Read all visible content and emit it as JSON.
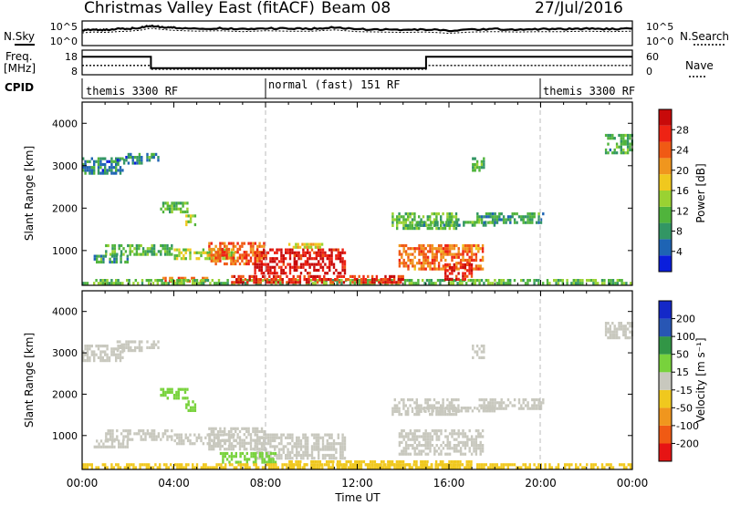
{
  "header": {
    "station": "Christmas Valley East (fitACF)",
    "beam": "Beam 08",
    "date": "27/Jul/2016"
  },
  "left_labels": {
    "nsky": "N.Sky",
    "freq_line1": "Freq.",
    "freq_line2": "[MHz]",
    "cpid": "CPID"
  },
  "right_labels": {
    "nsearch": "N.Search",
    "nave": "Nave"
  },
  "cpid_segments": [
    {
      "label": "themis 3300 RF",
      "start_h": 0.0
    },
    {
      "label": "normal (fast) 151 RF",
      "start_h": 8.0
    },
    {
      "label": "themis 3300 RF",
      "start_h": 20.0
    }
  ],
  "x_axis": {
    "title": "Time UT",
    "ticks": [
      "00:00",
      "04:00",
      "08:00",
      "12:00",
      "16:00",
      "20:00",
      "00:00"
    ],
    "tick_hours": [
      0,
      4,
      8,
      12,
      16,
      20,
      24
    ]
  },
  "y_axis": {
    "title": "Slant Range [km]",
    "ticks": [
      "1000",
      "2000",
      "3000",
      "4000"
    ],
    "tick_values": [
      1000,
      2000,
      3000,
      4000
    ],
    "range": [
      180,
      4500
    ]
  },
  "colors": {
    "power": [
      "#0a1edc",
      "#1e64b4",
      "#329664",
      "#50b43c",
      "#9ad232",
      "#f0c81e",
      "#f0961e",
      "#f05a14",
      "#ee2314",
      "#c80a0a"
    ],
    "velocity": [
      "#e61414",
      "#f05a14",
      "#f0961e",
      "#f0c81e",
      "#c8c8be",
      "#78d23c",
      "#329646",
      "#2856b4",
      "#1428c8"
    ],
    "ground_scatter": "#c8c8be"
  },
  "chart_data": [
    {
      "type": "line",
      "name": "noise-sky",
      "ylabel": "",
      "yticks_left": [
        "10^5",
        "10^0"
      ],
      "yticks_right": [
        "10^5",
        "10^0"
      ],
      "x": [
        0,
        0.5,
        1,
        1.5,
        2,
        2.5,
        3,
        3.5,
        4,
        5,
        6,
        7,
        8,
        9,
        10,
        11,
        12,
        13,
        14,
        15,
        16,
        17,
        18,
        19,
        20,
        21,
        22,
        23,
        24
      ],
      "values": [
        3.2,
        3.4,
        3.3,
        3.5,
        3.6,
        3.8,
        4.3,
        4.0,
        3.8,
        3.6,
        3.7,
        3.5,
        3.7,
        3.6,
        3.6,
        3.9,
        3.5,
        3.4,
        3.3,
        3.4,
        3.1,
        3.4,
        3.5,
        3.4,
        3.5,
        3.5,
        3.6,
        3.5,
        3.6
      ],
      "ylim": [
        0,
        5
      ]
    },
    {
      "type": "line",
      "name": "frequency-nave",
      "ylabel": "Freq. [MHz]",
      "yticks_left": [
        "18",
        "8"
      ],
      "yticks_right": [
        "60",
        "0"
      ],
      "series": [
        {
          "name": "Freq.",
          "x": [
            0,
            3,
            3,
            15,
            15,
            24
          ],
          "values": [
            15.5,
            15.5,
            10.5,
            10.5,
            15.5,
            15.5
          ]
        },
        {
          "name": "Nave",
          "x": [
            0,
            3,
            3,
            15,
            15,
            24
          ],
          "values": [
            22,
            22,
            12,
            12,
            22,
            22
          ]
        }
      ],
      "ylim_left": [
        8,
        18
      ],
      "ylim_right": [
        0,
        60
      ]
    },
    {
      "type": "heatmap",
      "title": "Power",
      "ylabel": "Slant Range [km]",
      "colorbar_label": "Power [dB]",
      "colorbar_ticks": [
        "4",
        "8",
        "12",
        "16",
        "20",
        "24",
        "28"
      ],
      "colorbar_tick_values": [
        4,
        8,
        12,
        16,
        20,
        24,
        28
      ],
      "colorbar_range": [
        0,
        32
      ],
      "xlim_h": [
        0,
        24
      ],
      "ylim_km": [
        180,
        4500
      ],
      "blobs": [
        {
          "h0": 0.0,
          "h1": 1.8,
          "r0": 2800,
          "r1": 3200,
          "v": 7
        },
        {
          "h0": 1.5,
          "h1": 2.6,
          "r0": 3000,
          "r1": 3300,
          "v": 6
        },
        {
          "h0": 2.8,
          "h1": 3.4,
          "r0": 3100,
          "r1": 3300,
          "v": 9
        },
        {
          "h0": 3.4,
          "h1": 4.6,
          "r0": 1900,
          "r1": 2150,
          "v": 12
        },
        {
          "h0": 4.5,
          "h1": 5.0,
          "r0": 1550,
          "r1": 1850,
          "v": 14
        },
        {
          "h0": 1.0,
          "h1": 4.0,
          "r0": 850,
          "r1": 1150,
          "v": 11
        },
        {
          "h0": 0.5,
          "h1": 2.0,
          "r0": 700,
          "r1": 900,
          "v": 9
        },
        {
          "h0": 4.0,
          "h1": 6.8,
          "r0": 780,
          "r1": 1050,
          "v": 15
        },
        {
          "h0": 5.5,
          "h1": 8.0,
          "r0": 650,
          "r1": 1200,
          "v": 24
        },
        {
          "h0": 7.5,
          "h1": 11.5,
          "r0": 400,
          "r1": 1050,
          "v": 29
        },
        {
          "h0": 8.8,
          "h1": 10.5,
          "r0": 1050,
          "r1": 1180,
          "v": 18
        },
        {
          "h0": 3.5,
          "h1": 5.5,
          "r0": 250,
          "r1": 380,
          "v": 24
        },
        {
          "h0": 0.0,
          "h1": 24.0,
          "r0": 180,
          "r1": 330,
          "v": 12
        },
        {
          "h0": 6.5,
          "h1": 14.0,
          "r0": 180,
          "r1": 420,
          "v": 27
        },
        {
          "h0": 13.5,
          "h1": 16.5,
          "r0": 1500,
          "r1": 1900,
          "v": 12
        },
        {
          "h0": 14.5,
          "h1": 18.0,
          "r0": 1550,
          "r1": 1700,
          "v": 10
        },
        {
          "h0": 17.2,
          "h1": 20.2,
          "r0": 1650,
          "r1": 1900,
          "v": 9
        },
        {
          "h0": 13.8,
          "h1": 17.5,
          "r0": 500,
          "r1": 1150,
          "v": 23
        },
        {
          "h0": 15.8,
          "h1": 17.0,
          "r0": 300,
          "r1": 700,
          "v": 28
        },
        {
          "h0": 17.0,
          "h1": 17.6,
          "r0": 2850,
          "r1": 3200,
          "v": 10
        },
        {
          "h0": 22.8,
          "h1": 24.0,
          "r0": 3300,
          "r1": 3750,
          "v": 10
        }
      ]
    },
    {
      "type": "heatmap",
      "title": "Velocity",
      "ylabel": "Slant Range [km]",
      "colorbar_label": "Velocity [m s⁻¹]",
      "colorbar_ticks": [
        "200",
        "100",
        "50",
        "15",
        "-15",
        "-50",
        "-100",
        "-200"
      ],
      "colorbar_tick_values": [
        200,
        100,
        50,
        15,
        -15,
        -50,
        -100,
        -200
      ],
      "colorbar_range": [
        -250,
        250
      ],
      "xlim_h": [
        0,
        24
      ],
      "ylim_km": [
        180,
        4500
      ],
      "blobs": [
        {
          "h0": 0.0,
          "h1": 1.8,
          "r0": 2800,
          "r1": 3200,
          "v": 0
        },
        {
          "h0": 1.5,
          "h1": 2.6,
          "r0": 3000,
          "r1": 3300,
          "v": 0
        },
        {
          "h0": 2.8,
          "h1": 3.4,
          "r0": 3100,
          "r1": 3300,
          "v": 0
        },
        {
          "h0": 3.4,
          "h1": 4.6,
          "r0": 1900,
          "r1": 2150,
          "v": 35
        },
        {
          "h0": 4.5,
          "h1": 5.0,
          "r0": 1550,
          "r1": 1850,
          "v": 40
        },
        {
          "h0": 1.0,
          "h1": 4.0,
          "r0": 850,
          "r1": 1150,
          "v": 0
        },
        {
          "h0": 0.5,
          "h1": 2.0,
          "r0": 700,
          "r1": 900,
          "v": 0
        },
        {
          "h0": 4.0,
          "h1": 6.8,
          "r0": 780,
          "r1": 1050,
          "v": 0
        },
        {
          "h0": 5.5,
          "h1": 8.0,
          "r0": 650,
          "r1": 1200,
          "v": 0
        },
        {
          "h0": 7.5,
          "h1": 11.5,
          "r0": 400,
          "r1": 1050,
          "v": 0
        },
        {
          "h0": 6.0,
          "h1": 8.5,
          "r0": 350,
          "r1": 600,
          "v": 40
        },
        {
          "h0": 0.0,
          "h1": 24.0,
          "r0": 180,
          "r1": 330,
          "v": -25
        },
        {
          "h0": 9.0,
          "h1": 17.0,
          "r0": 180,
          "r1": 400,
          "v": -40
        },
        {
          "h0": 13.5,
          "h1": 16.5,
          "r0": 1500,
          "r1": 1900,
          "v": 0
        },
        {
          "h0": 14.5,
          "h1": 18.0,
          "r0": 1550,
          "r1": 1700,
          "v": 0
        },
        {
          "h0": 17.2,
          "h1": 20.2,
          "r0": 1650,
          "r1": 1900,
          "v": 0
        },
        {
          "h0": 13.8,
          "h1": 17.5,
          "r0": 500,
          "r1": 1150,
          "v": 0
        },
        {
          "h0": 17.0,
          "h1": 17.6,
          "r0": 2850,
          "r1": 3200,
          "v": 0
        },
        {
          "h0": 22.8,
          "h1": 24.0,
          "r0": 3300,
          "r1": 3750,
          "v": 0
        }
      ]
    }
  ]
}
